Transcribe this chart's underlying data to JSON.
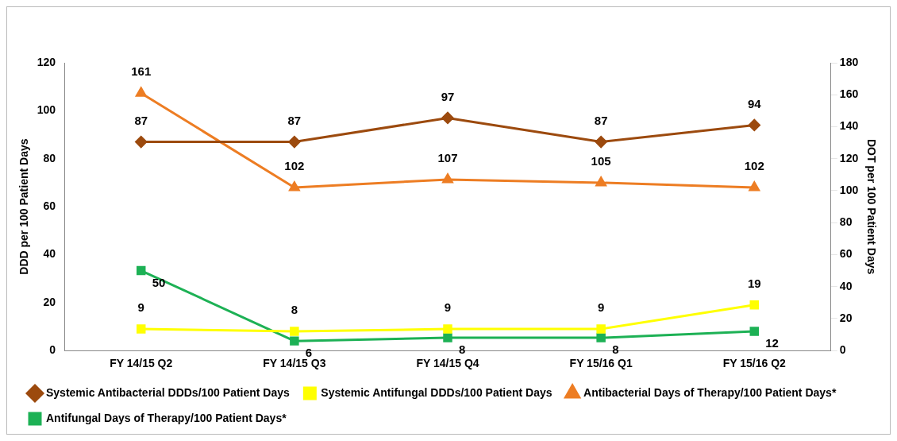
{
  "chart_data": {
    "type": "line",
    "categories": [
      "FY 14/15 Q2",
      "FY 14/15 Q3",
      "FY 14/15 Q4",
      "FY 15/16 Q1",
      "FY 15/16 Q2"
    ],
    "ylabel": "DDD per 100 Patient Days",
    "y2label": "DOT per 100 Patient Days",
    "ylim": [
      0,
      120
    ],
    "yticks": [
      0,
      20,
      40,
      60,
      80,
      100,
      120
    ],
    "y2lim": [
      0,
      180
    ],
    "y2ticks": [
      0,
      20,
      40,
      60,
      80,
      100,
      120,
      140,
      160,
      180
    ],
    "grid": false,
    "legend": "bottom",
    "data_labels": true,
    "series": [
      {
        "name": "Systemic Antibacterial DDDs/100 Patient Days",
        "color": "#9c4a0e",
        "marker": "diamond",
        "values": [
          87,
          87,
          97,
          87,
          94
        ]
      },
      {
        "name": "Systemic Antifungal DDDs/100 Patient Days",
        "color": "#ffff00",
        "marker": "square",
        "values": [
          9,
          8,
          9,
          9,
          19
        ]
      },
      {
        "name": "Antibacterial Days of Therapy/100 Patient Days*",
        "color": "#ed7d23",
        "marker": "triangle",
        "axis": "y2",
        "values": [
          161,
          102,
          107,
          105,
          102
        ]
      },
      {
        "name": "Antifungal Days of Therapy/100 Patient Days*",
        "color": "#1db155",
        "marker": "square",
        "axis": "y2",
        "values": [
          50,
          6,
          8,
          8,
          12
        ]
      }
    ]
  }
}
